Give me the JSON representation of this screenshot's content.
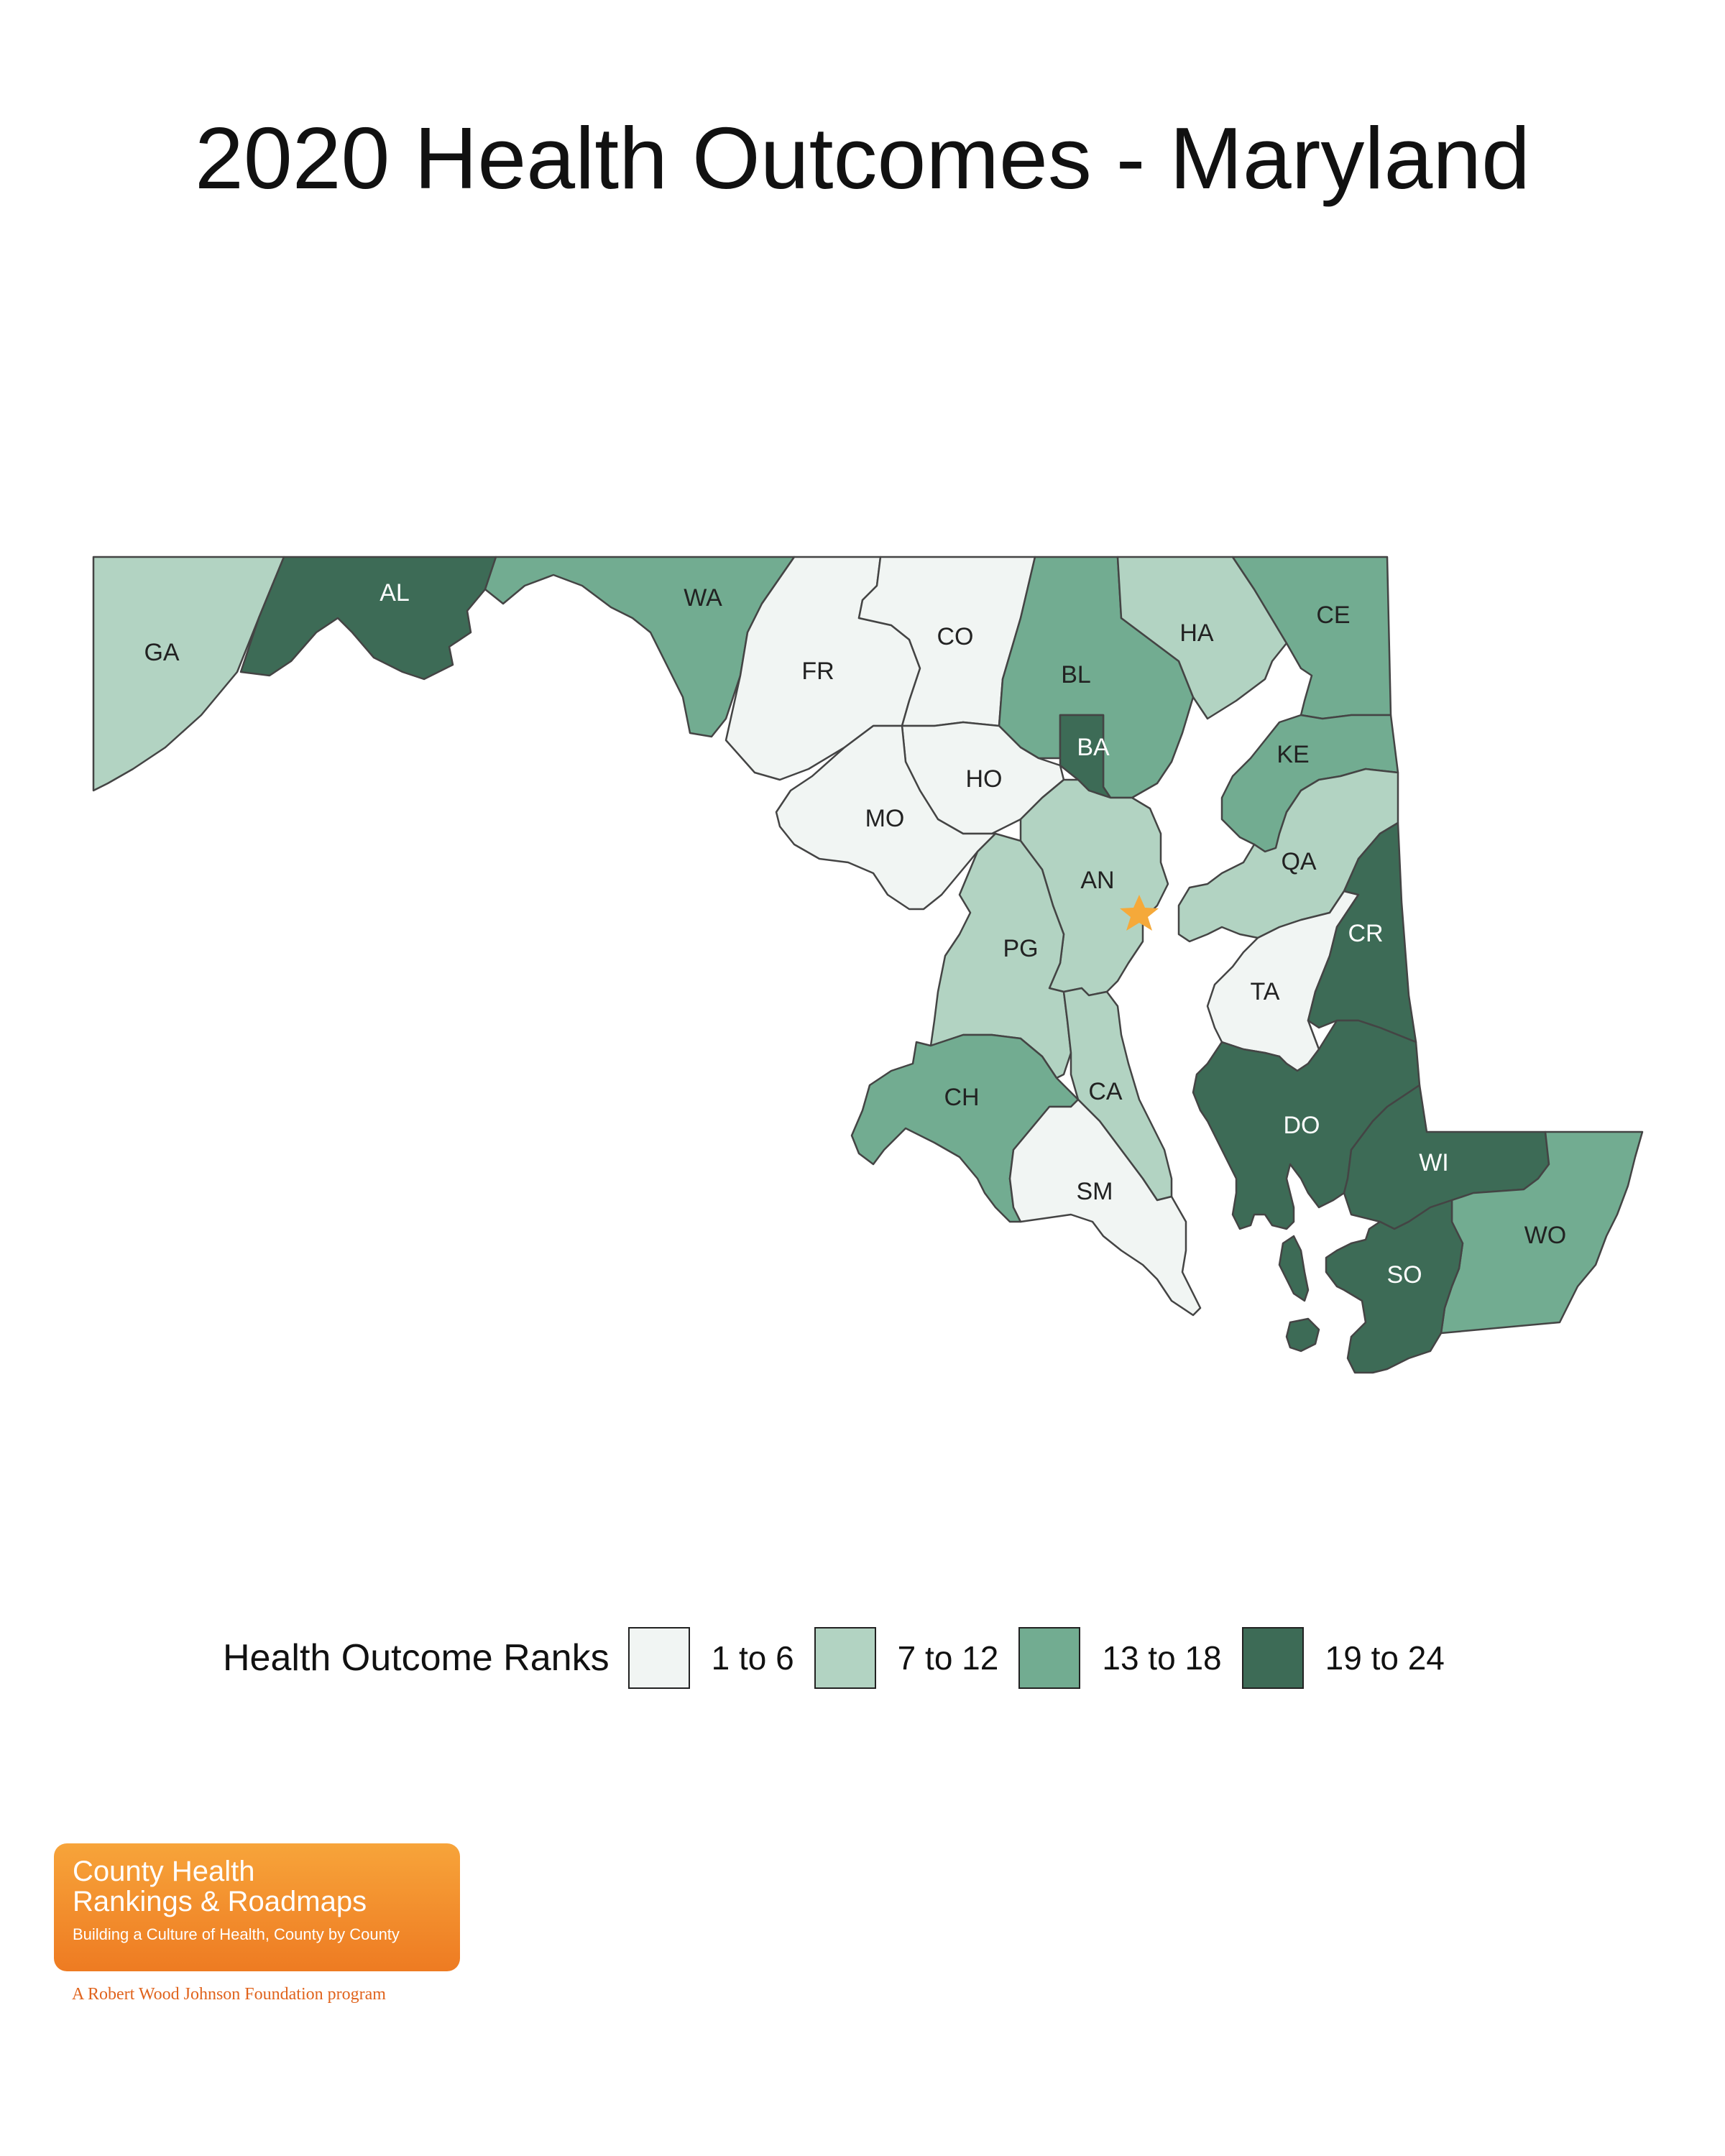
{
  "title": "2020 Health Outcomes - Maryland",
  "colors": {
    "rank_1_6": "#f1f5f3",
    "rank_7_12": "#b2d3c2",
    "rank_13_18": "#72ac91",
    "rank_19_24": "#3d6b56",
    "border": "#444444",
    "star": "#f5a93a"
  },
  "legend": {
    "title": "Health Outcome Ranks",
    "items": [
      {
        "label": "1 to 6",
        "color": "#f1f5f3"
      },
      {
        "label": "7 to 12",
        "color": "#b2d3c2"
      },
      {
        "label": "13 to 18",
        "color": "#72ac91"
      },
      {
        "label": "19 to 24",
        "color": "#3d6b56"
      }
    ]
  },
  "counties": [
    {
      "abbr": "GA",
      "rank_group": "7 to 12"
    },
    {
      "abbr": "AL",
      "rank_group": "19 to 24"
    },
    {
      "abbr": "WA",
      "rank_group": "13 to 18"
    },
    {
      "abbr": "FR",
      "rank_group": "1 to 6"
    },
    {
      "abbr": "CO",
      "rank_group": "1 to 6"
    },
    {
      "abbr": "BL",
      "rank_group": "13 to 18"
    },
    {
      "abbr": "HA",
      "rank_group": "7 to 12"
    },
    {
      "abbr": "CE",
      "rank_group": "13 to 18"
    },
    {
      "abbr": "BA",
      "rank_group": "19 to 24"
    },
    {
      "abbr": "HO",
      "rank_group": "1 to 6"
    },
    {
      "abbr": "MO",
      "rank_group": "1 to 6"
    },
    {
      "abbr": "KE",
      "rank_group": "13 to 18"
    },
    {
      "abbr": "QA",
      "rank_group": "7 to 12"
    },
    {
      "abbr": "AN",
      "rank_group": "7 to 12"
    },
    {
      "abbr": "PG",
      "rank_group": "7 to 12"
    },
    {
      "abbr": "CR",
      "rank_group": "19 to 24"
    },
    {
      "abbr": "TA",
      "rank_group": "1 to 6"
    },
    {
      "abbr": "CH",
      "rank_group": "13 to 18"
    },
    {
      "abbr": "CA",
      "rank_group": "7 to 12"
    },
    {
      "abbr": "DO",
      "rank_group": "19 to 24"
    },
    {
      "abbr": "WI",
      "rank_group": "19 to 24"
    },
    {
      "abbr": "SM",
      "rank_group": "1 to 6"
    },
    {
      "abbr": "WO",
      "rank_group": "13 to 18"
    },
    {
      "abbr": "SO",
      "rank_group": "19 to 24"
    }
  ],
  "logo": {
    "line1": "County Health",
    "line2": "Rankings & Roadmaps",
    "tagline": "Building a Culture of Health, County by County",
    "sub": "A Robert Wood Johnson Foundation program"
  }
}
